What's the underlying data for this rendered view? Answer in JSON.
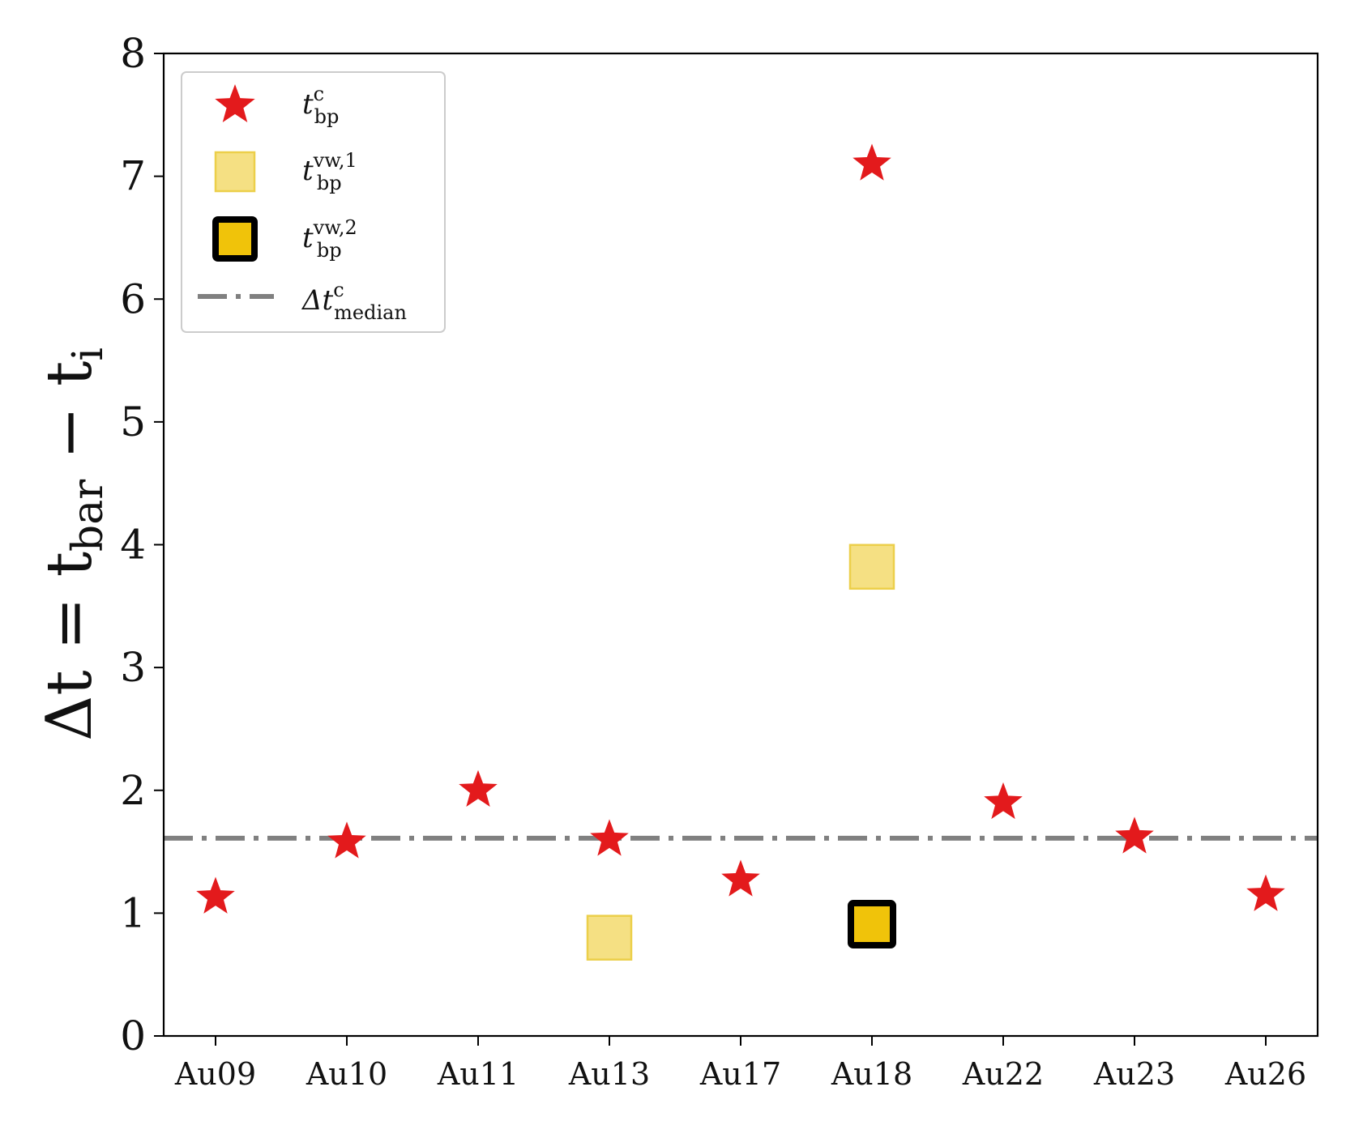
{
  "chart_data": {
    "type": "scatter",
    "categories": [
      "Au09",
      "Au10",
      "Au11",
      "Au13",
      "Au17",
      "Au18",
      "Au22",
      "Au23",
      "Au26"
    ],
    "ylim": [
      0,
      8
    ],
    "yticks": [
      "0",
      "1",
      "2",
      "3",
      "4",
      "5",
      "6",
      "7",
      "8"
    ],
    "ylabel": {
      "lead": "Δt = t",
      "sub": "bar",
      "mid": " − t",
      "sub2": "i"
    },
    "series": [
      {
        "key": "tc",
        "marker": "star",
        "color": "#e31a1c",
        "legend_base": "t",
        "legend_sup": "c",
        "legend_sub": "bp",
        "points": [
          {
            "category": "Au09",
            "y": 1.13
          },
          {
            "category": "Au10",
            "y": 1.58
          },
          {
            "category": "Au11",
            "y": 2.0
          },
          {
            "category": "Au13",
            "y": 1.6
          },
          {
            "category": "Au17",
            "y": 1.27
          },
          {
            "category": "Au18",
            "y": 7.1
          },
          {
            "category": "Au22",
            "y": 1.9
          },
          {
            "category": "Au23",
            "y": 1.62
          },
          {
            "category": "Au26",
            "y": 1.15
          }
        ]
      },
      {
        "key": "tvw1",
        "marker": "square",
        "color": "#f5e083",
        "edge": "#eccf4a",
        "legend_base": "t",
        "legend_sup": "vw,1",
        "legend_sub": "bp",
        "points": [
          {
            "category": "Au13",
            "y": 0.8
          },
          {
            "category": "Au18",
            "y": 3.82
          }
        ]
      },
      {
        "key": "tvw2",
        "marker": "square-outlined",
        "color": "#f0c30a",
        "edge": "#000000",
        "legend_base": "t",
        "legend_sup": "vw,2",
        "legend_sub": "bp",
        "points": [
          {
            "category": "Au18",
            "y": 0.91
          }
        ]
      }
    ],
    "median_line": {
      "y": 1.61,
      "color": "#808080",
      "style": "dash-dot",
      "legend_base": "Δt",
      "legend_sup": "c",
      "legend_sub": "median"
    },
    "legend": {
      "placement": "top-left"
    },
    "grid": false
  }
}
